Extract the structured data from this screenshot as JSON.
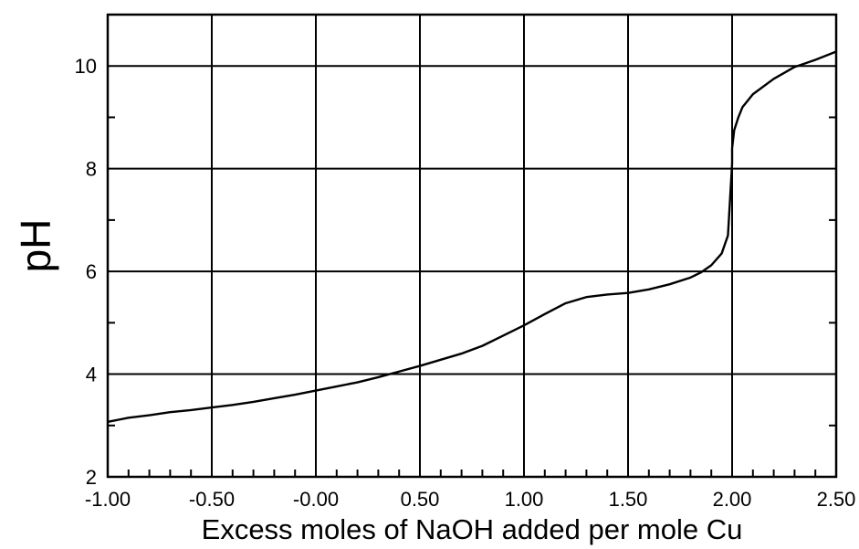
{
  "chart_data": {
    "type": "line",
    "title": "",
    "xlabel": "Excess moles of NaOH added per mole Cu",
    "ylabel": "pH",
    "xlim": [
      -1.0,
      2.5
    ],
    "ylim": [
      2,
      11
    ],
    "grid": true,
    "x_ticks": [
      -1.0,
      -0.5,
      0.0,
      0.5,
      1.0,
      1.5,
      2.0,
      2.5
    ],
    "x_tick_labels": [
      "-1.00",
      "-0.50",
      "-0.00",
      "0.50",
      "1.00",
      "1.50",
      "2.00",
      "2.50"
    ],
    "y_ticks": [
      2,
      4,
      6,
      8,
      10
    ],
    "y_tick_labels": [
      "2",
      "4",
      "6",
      "8",
      "10"
    ],
    "series": [
      {
        "x": [
          -1.0,
          -0.9,
          -0.8,
          -0.7,
          -0.6,
          -0.5,
          -0.4,
          -0.3,
          -0.2,
          -0.1,
          0.0,
          0.1,
          0.2,
          0.3,
          0.4,
          0.5,
          0.6,
          0.7,
          0.8,
          0.9,
          1.0,
          1.1,
          1.2,
          1.3,
          1.4,
          1.5,
          1.6,
          1.7,
          1.8,
          1.85,
          1.9,
          1.95,
          1.98,
          1.99,
          2.0,
          2.0,
          2.01,
          2.03,
          2.05,
          2.1,
          2.2,
          2.3,
          2.4,
          2.5
        ],
        "y": [
          3.07,
          3.15,
          3.2,
          3.26,
          3.3,
          3.35,
          3.4,
          3.46,
          3.53,
          3.6,
          3.68,
          3.76,
          3.84,
          3.94,
          4.05,
          4.16,
          4.28,
          4.4,
          4.55,
          4.75,
          4.95,
          5.17,
          5.38,
          5.5,
          5.55,
          5.58,
          5.65,
          5.75,
          5.88,
          5.98,
          6.12,
          6.35,
          6.7,
          7.4,
          8.1,
          8.4,
          8.75,
          9.0,
          9.2,
          9.45,
          9.75,
          9.98,
          10.12,
          10.28
        ]
      }
    ]
  }
}
